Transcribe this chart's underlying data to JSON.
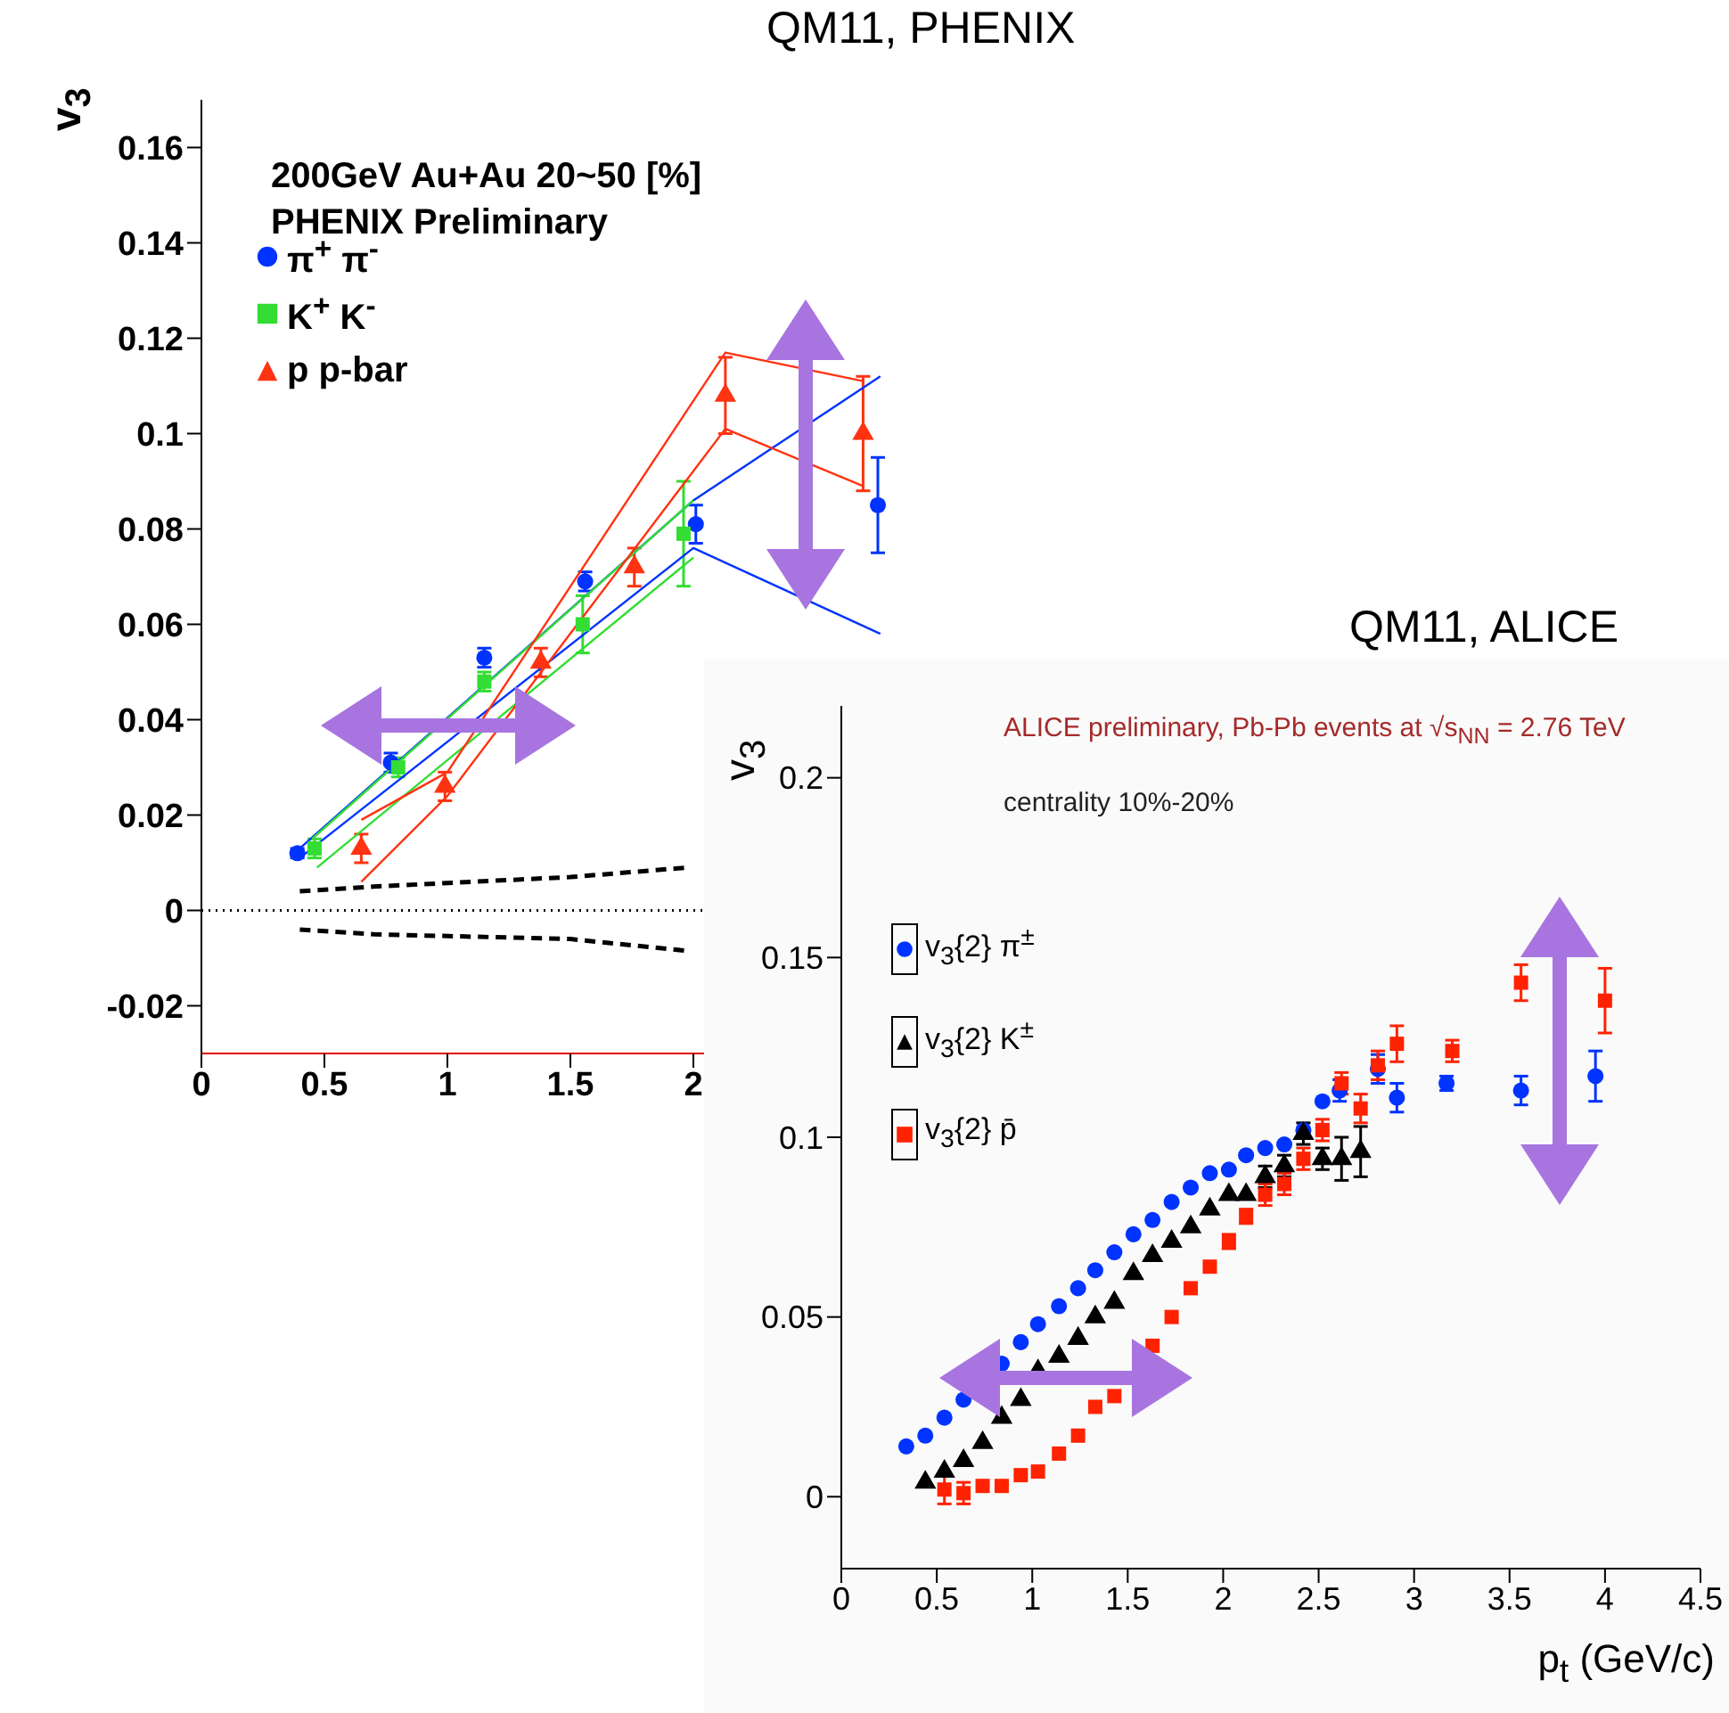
{
  "chart_data": [
    {
      "type": "scatter",
      "title": "QM11, PHENIX",
      "ylabel": "v$_{3}$",
      "annotations": [
        "200GeV Au+Au 20~50 [%]",
        "PHENIX Preliminary"
      ],
      "xlim": [
        0,
        4
      ],
      "xticks": [
        0,
        0.5,
        1,
        1.5,
        2
      ],
      "ylim": [
        -0.03,
        0.17
      ],
      "yticks": [
        -0.02,
        0,
        0.02,
        0.04,
        0.06,
        0.08,
        0.1,
        0.12,
        0.14,
        0.16
      ],
      "legend": "top left",
      "ref_lines": [
        {
          "axis": "y",
          "value": 0,
          "color": "#000000",
          "line_style": "dotted"
        }
      ],
      "series": [
        {
          "name": "π$^{+}$ π$^{-}$",
          "color": "#0033ff",
          "marker": "circle",
          "x": [
            0.39,
            0.77,
            1.15,
            1.56,
            2.01,
            2.75
          ],
          "values": [
            0.012,
            0.031,
            0.053,
            0.069,
            0.081,
            0.085
          ],
          "errors": [
            0.001,
            0.002,
            0.002,
            0.002,
            0.004,
            0.01
          ]
        },
        {
          "name": "K$^{+}$ K$^{-}$",
          "color": "#33dd33",
          "marker": "square",
          "x": [
            0.46,
            0.8,
            1.15,
            1.55,
            1.96
          ],
          "values": [
            0.013,
            0.03,
            0.048,
            0.06,
            0.079
          ],
          "errors": [
            0.002,
            0.002,
            0.002,
            0.006,
            0.011
          ]
        },
        {
          "name": "p p-bar",
          "color": "#ff3311",
          "marker": "triangle",
          "x": [
            0.65,
            0.99,
            1.38,
            1.76,
            2.13,
            2.69
          ],
          "values": [
            0.013,
            0.026,
            0.052,
            0.072,
            0.108,
            0.1
          ],
          "errors": [
            0.003,
            0.003,
            0.003,
            0.004,
            0.008,
            0.012
          ]
        },
        {
          "type": "line",
          "color": "#0033ff",
          "x": [
            0.4,
            2.0,
            2.76
          ],
          "values": [
            0.013,
            0.086,
            0.112
          ]
        },
        {
          "type": "line",
          "color": "#0033ff",
          "x": [
            0.4,
            2.0,
            2.76
          ],
          "values": [
            0.011,
            0.076,
            0.058
          ]
        },
        {
          "type": "line",
          "color": "#33dd33",
          "x": [
            0.45,
            2.0
          ],
          "values": [
            0.015,
            0.086
          ]
        },
        {
          "type": "line",
          "color": "#33dd33",
          "x": [
            0.47,
            2.0
          ],
          "values": [
            0.009,
            0.074
          ]
        },
        {
          "type": "line",
          "color": "#ff3311",
          "x": [
            0.65,
            1.0,
            2.13,
            2.69
          ],
          "values": [
            0.019,
            0.029,
            0.117,
            0.111
          ]
        },
        {
          "type": "line",
          "color": "#ff3311",
          "x": [
            0.65,
            1.0,
            2.13,
            2.69
          ],
          "values": [
            0.006,
            0.024,
            0.101,
            0.089
          ]
        },
        {
          "type": "line",
          "color": "#000000",
          "line_style": "dashed",
          "x": [
            0.4,
            0.7,
            1.5,
            1.98
          ],
          "values": [
            0.004,
            0.005,
            0.007,
            0.009
          ]
        },
        {
          "type": "line",
          "color": "#000000",
          "line_style": "dashed",
          "x": [
            0.4,
            0.7,
            1.5,
            1.98
          ],
          "values": [
            -0.004,
            -0.005,
            -0.006,
            -0.0085
          ]
        }
      ]
    },
    {
      "type": "scatter",
      "title": "QM11, ALICE",
      "ylabel": "v$_{3}$",
      "xlabel": "p$_{t}$ (GeV/c)",
      "annotations": [
        "ALICE preliminary, Pb-Pb events at √s$_{NN}$ = 2.76 TeV",
        "centrality 10%-20%"
      ],
      "xlim": [
        0,
        4.5
      ],
      "xticks": [
        0,
        0.5,
        1,
        1.5,
        2,
        2.5,
        3,
        3.5,
        4,
        4.5
      ],
      "ylim": [
        -0.02,
        0.22
      ],
      "yticks": [
        0,
        0.05,
        0.1,
        0.15,
        0.2
      ],
      "legend": "left",
      "series": [
        {
          "name": "v$_{3}${2} π$^{±}$",
          "color": "#0033ff",
          "marker": "circle",
          "x": [
            0.34,
            0.44,
            0.54,
            0.64,
            0.84,
            0.94,
            1.03,
            1.14,
            1.24,
            1.33,
            1.43,
            1.53,
            1.63,
            1.73,
            1.83,
            1.93,
            2.03,
            2.12,
            2.22,
            2.32,
            2.42,
            2.52,
            2.61,
            2.81,
            2.91,
            3.17,
            3.56,
            3.95
          ],
          "values": [
            0.014,
            0.017,
            0.022,
            0.027,
            0.037,
            0.043,
            0.048,
            0.053,
            0.058,
            0.063,
            0.068,
            0.073,
            0.077,
            0.082,
            0.086,
            0.09,
            0.091,
            0.095,
            0.097,
            0.098,
            0.102,
            0.11,
            0.113,
            0.119,
            0.111,
            0.115,
            0.113,
            0.117
          ],
          "errors": [
            null,
            null,
            null,
            null,
            null,
            null,
            null,
            null,
            null,
            null,
            null,
            null,
            null,
            null,
            null,
            null,
            null,
            null,
            null,
            null,
            null,
            null,
            0.003,
            0.004,
            0.004,
            0.002,
            0.004,
            0.007
          ]
        },
        {
          "name": "v$_{3}${2} K$^{±}$",
          "color": "#000000",
          "marker": "triangle",
          "x": [
            0.44,
            0.54,
            0.64,
            0.74,
            0.84,
            0.94,
            1.03,
            1.14,
            1.24,
            1.33,
            1.43,
            1.53,
            1.63,
            1.73,
            1.83,
            1.93,
            2.03,
            2.12,
            2.22,
            2.32,
            2.42,
            2.52,
            2.62,
            2.72
          ],
          "values": [
            0.004,
            0.007,
            0.01,
            0.015,
            0.022,
            0.027,
            0.035,
            0.039,
            0.044,
            0.05,
            0.054,
            0.062,
            0.067,
            0.071,
            0.075,
            0.08,
            0.084,
            0.084,
            0.089,
            0.092,
            0.101,
            0.094,
            0.094,
            0.096
          ],
          "errors": [
            null,
            null,
            null,
            null,
            null,
            null,
            null,
            null,
            null,
            null,
            null,
            null,
            null,
            null,
            null,
            null,
            null,
            null,
            0.003,
            0.003,
            0.003,
            0.003,
            0.006,
            0.007
          ]
        },
        {
          "name": "v$_{3}${2} p̄",
          "color": "#ff2200",
          "marker": "square",
          "x": [
            0.54,
            0.64,
            0.74,
            0.84,
            0.94,
            1.03,
            1.14,
            1.24,
            1.33,
            1.43,
            1.63,
            1.73,
            1.83,
            1.93,
            2.03,
            2.12,
            2.22,
            2.32,
            2.42,
            2.52,
            2.62,
            2.72,
            2.81,
            2.91,
            3.2,
            3.56,
            4.0
          ],
          "values": [
            0.002,
            0.001,
            0.003,
            0.003,
            0.006,
            0.007,
            0.012,
            0.017,
            0.025,
            0.028,
            0.042,
            0.05,
            0.058,
            0.064,
            0.071,
            0.078,
            0.084,
            0.087,
            0.094,
            0.102,
            0.115,
            0.108,
            0.12,
            0.126,
            0.124,
            0.143,
            0.138
          ],
          "errors": [
            0.004,
            0.003,
            null,
            null,
            null,
            null,
            null,
            null,
            null,
            null,
            null,
            null,
            null,
            null,
            0.002,
            0.002,
            0.003,
            0.003,
            0.003,
            0.003,
            0.003,
            0.004,
            0.004,
            0.005,
            0.003,
            0.005,
            0.009
          ]
        }
      ]
    }
  ]
}
